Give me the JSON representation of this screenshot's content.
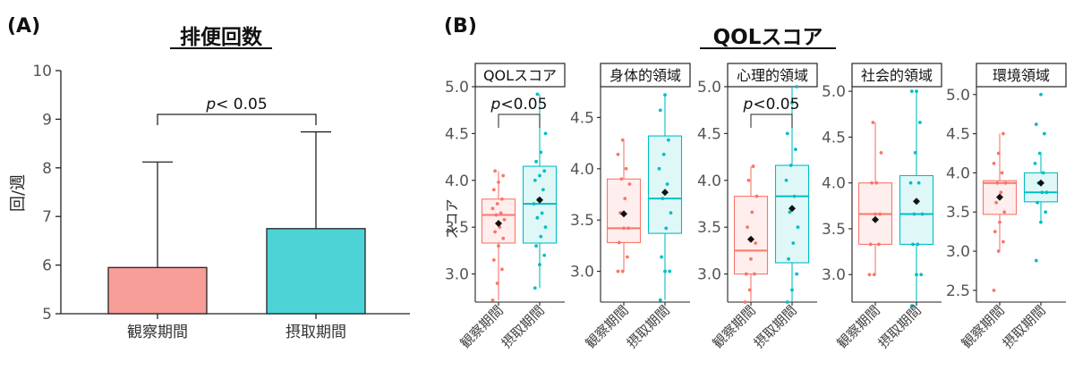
{
  "panel_a": {
    "label": "(A)",
    "title": "排便回数",
    "ylabel": "回/週",
    "significance": {
      "p_italic": "p",
      "rest": "< 0.05"
    }
  },
  "panel_b": {
    "label": "(B)",
    "title": "QOLスコア",
    "ylabel": "スコア",
    "significance": {
      "p_italic": "p",
      "rest": "<0.05"
    }
  },
  "colors": {
    "bar_observation": "#F79E98",
    "bar_intake": "#4DD3D6",
    "box_observation": "#F8766D",
    "box_intake": "#00BFC4"
  },
  "chart_data": [
    {
      "type": "bar",
      "title": "排便回数",
      "ylabel": "回/週",
      "categories": [
        "観察期間",
        "摂取期間"
      ],
      "values": [
        5.95,
        6.75
      ],
      "error_upper": [
        8.12,
        8.74
      ],
      "ylim": [
        5,
        10
      ],
      "yticks": [
        "5",
        "6",
        "7",
        "8",
        "9",
        "10"
      ],
      "annotation": "p< 0.05"
    },
    {
      "type": "box",
      "title": "QOLスコア",
      "ylabel": "スコア",
      "categories": [
        "観察期間",
        "摂取期間"
      ],
      "facets": [
        {
          "name": "QOLスコア",
          "ylim": [
            2.7,
            5.0
          ],
          "yticks": [
            "3.0",
            "3.5",
            "4.0",
            "4.5",
            "5.0"
          ],
          "significance": "p<0.05",
          "boxes": [
            {
              "q1": 3.33,
              "median": 3.63,
              "q3": 3.8,
              "whisker_low": 2.72,
              "whisker_high": 4.1,
              "mean": 3.54,
              "points": [
                2.72,
                2.9,
                3.05,
                3.15,
                3.3,
                3.38,
                3.45,
                3.5,
                3.58,
                3.63,
                3.65,
                3.7,
                3.75,
                3.8,
                3.9,
                3.98,
                4.05,
                4.1
              ]
            },
            {
              "q1": 3.33,
              "median": 3.75,
              "q3": 4.15,
              "whisker_low": 2.85,
              "whisker_high": 4.92,
              "mean": 3.79,
              "points": [
                2.85,
                3.1,
                3.2,
                3.3,
                3.4,
                3.5,
                3.6,
                3.65,
                3.75,
                3.8,
                3.9,
                4.0,
                4.05,
                4.1,
                4.2,
                4.3,
                4.5,
                4.92
              ]
            }
          ]
        },
        {
          "name": "身体的領域",
          "ylim": [
            2.7,
            4.8
          ],
          "yticks": [
            "3.0",
            "3.5",
            "4.0",
            "4.5"
          ],
          "boxes": [
            {
              "q1": 3.28,
              "median": 3.42,
              "q3": 3.9,
              "whisker_low": 3.0,
              "whisker_high": 4.28,
              "mean": 3.56,
              "points": [
                3.0,
                3.0,
                3.14,
                3.28,
                3.42,
                3.42,
                3.57,
                3.71,
                3.85,
                3.9,
                4.0,
                4.14,
                4.28
              ]
            },
            {
              "q1": 3.37,
              "median": 3.71,
              "q3": 4.32,
              "whisker_low": 2.72,
              "whisker_high": 4.72,
              "mean": 3.77,
              "points": [
                2.72,
                3.0,
                3.0,
                3.14,
                3.42,
                3.57,
                3.71,
                3.85,
                4.0,
                4.14,
                4.28,
                4.57,
                4.72
              ]
            }
          ]
        },
        {
          "name": "心理的領域",
          "ylim": [
            2.7,
            5.0
          ],
          "yticks": [
            "3.0",
            "3.5",
            "4.0",
            "4.5",
            "5.0"
          ],
          "significance": "p<0.05",
          "boxes": [
            {
              "q1": 3.0,
              "median": 3.25,
              "q3": 3.83,
              "whisker_low": 2.7,
              "whisker_high": 4.15,
              "mean": 3.37,
              "points": [
                2.7,
                2.83,
                3.0,
                3.0,
                3.16,
                3.33,
                3.5,
                3.66,
                3.83,
                4.0,
                4.15
              ]
            },
            {
              "q1": 3.12,
              "median": 3.83,
              "q3": 4.16,
              "whisker_low": 2.7,
              "whisker_high": 5.0,
              "mean": 3.7,
              "points": [
                2.7,
                2.83,
                3.0,
                3.16,
                3.33,
                3.5,
                3.66,
                3.83,
                4.0,
                4.16,
                4.33,
                4.5,
                4.83,
                5.0
              ]
            }
          ]
        },
        {
          "name": "社会的領域",
          "ylim": [
            2.7,
            5.05
          ],
          "yticks": [
            "3.0",
            "3.5",
            "4.0",
            "4.5",
            "5.0"
          ],
          "boxes": [
            {
              "q1": 3.33,
              "median": 3.66,
              "q3": 4.0,
              "whisker_low": 3.0,
              "whisker_high": 4.66,
              "mean": 3.6,
              "points": [
                3.0,
                3.0,
                3.33,
                3.33,
                3.66,
                3.66,
                4.0,
                4.0,
                4.33,
                4.66
              ]
            },
            {
              "q1": 3.33,
              "median": 3.66,
              "q3": 4.08,
              "whisker_low": 2.66,
              "whisker_high": 5.0,
              "mean": 3.8,
              "points": [
                2.66,
                3.0,
                3.0,
                3.33,
                3.33,
                3.66,
                3.66,
                4.0,
                4.0,
                4.33,
                4.66,
                5.0,
                5.0
              ]
            }
          ]
        },
        {
          "name": "環境領域",
          "ylim": [
            2.35,
            5.1
          ],
          "yticks": [
            "2.5",
            "3.0",
            "3.5",
            "4.0",
            "4.5",
            "5.0"
          ],
          "boxes": [
            {
              "q1": 3.47,
              "median": 3.87,
              "q3": 3.9,
              "whisker_low": 3.0,
              "whisker_high": 4.5,
              "mean": 3.69,
              "points": [
                2.5,
                3.0,
                3.12,
                3.25,
                3.37,
                3.5,
                3.62,
                3.75,
                3.87,
                3.87,
                4.0,
                4.12,
                4.25,
                4.5
              ]
            },
            {
              "q1": 3.63,
              "median": 3.75,
              "q3": 4.0,
              "whisker_low": 3.37,
              "whisker_high": 4.25,
              "mean": 3.87,
              "points": [
                2.88,
                3.37,
                3.5,
                3.62,
                3.75,
                3.75,
                3.87,
                4.0,
                4.12,
                4.25,
                4.5,
                4.62,
                5.0
              ]
            }
          ]
        }
      ]
    }
  ]
}
